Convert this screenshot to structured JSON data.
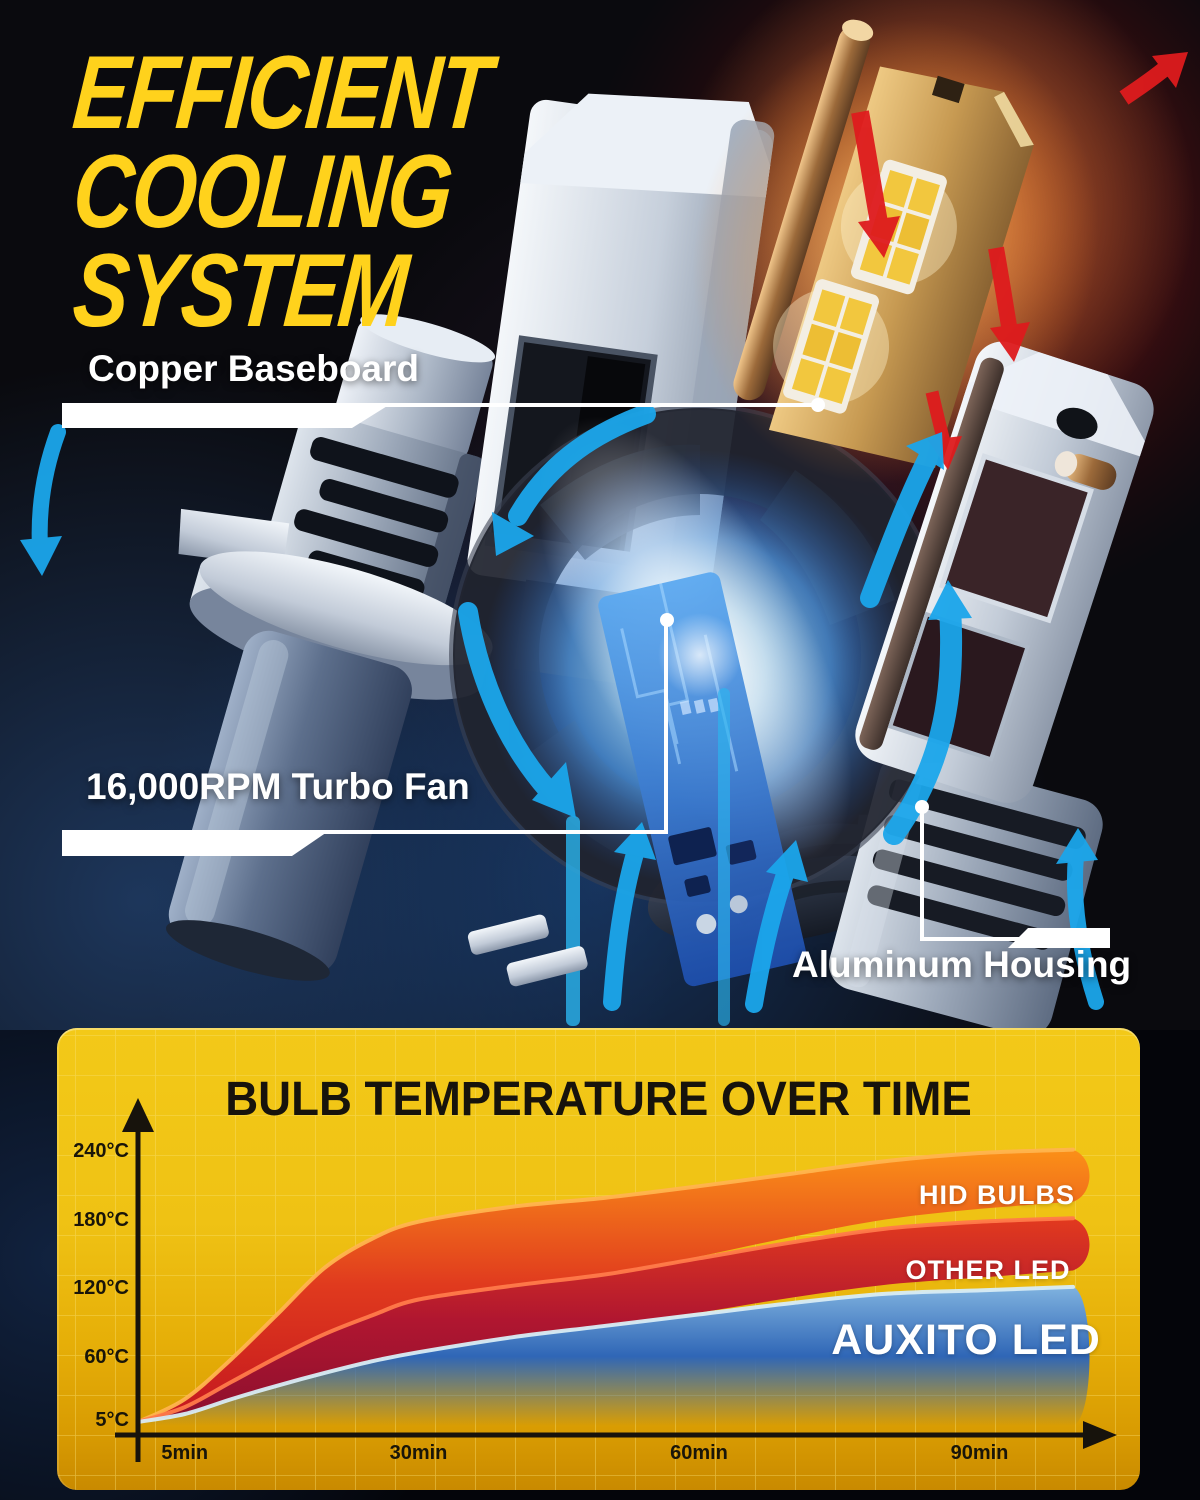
{
  "header": {
    "title_lines": [
      "EFFICIENT",
      "COOLING",
      "SYSTEM"
    ]
  },
  "callouts": {
    "copper": "Copper Baseboard",
    "fan": "16,000RPM Turbo Fan",
    "housing": "Aluminum Housing"
  },
  "colors": {
    "headline_yellow": "#FFD21C",
    "card_yellow_top": "#F3C918",
    "card_yellow_bottom": "#C98A00",
    "grid_line": "#F8E070",
    "axis_black": "#17130C",
    "blue_arrow": "#1BA6EB",
    "red_arrow": "#DE1B1D",
    "fan_glow_blue": "#4E95DD"
  },
  "chart_data": {
    "type": "area",
    "title": "BULB TEMPERATURE OVER TIME",
    "xlabel": "",
    "ylabel": "",
    "x_unit": "min",
    "y_unit": "°C",
    "ylim": [
      0,
      260
    ],
    "grid": true,
    "legend_position": "on-chart-right",
    "x": [
      0,
      5,
      10,
      15,
      20,
      25,
      30,
      40,
      50,
      60,
      70,
      80,
      90
    ],
    "series": [
      {
        "name": "HID BULBS",
        "values": [
          5,
          25,
          60,
          100,
          140,
          165,
          180,
          193,
          201,
          211,
          222,
          233,
          240
        ],
        "color_top": "#FB9018",
        "color_mid": "#E03A1E",
        "color_bottom": "#C3161F",
        "edge": "#FFB44E",
        "fade_bottom": false
      },
      {
        "name": "OTHER LED",
        "values": [
          5,
          18,
          40,
          62,
          82,
          98,
          112,
          124,
          134,
          148,
          162,
          174,
          180
        ],
        "color_top": "#E23A1E",
        "color_mid": "#B01630",
        "color_bottom": "#8C0F2E",
        "edge": "#FF7A4A",
        "fade_bottom": false
      },
      {
        "name": "AUXITO LED",
        "values": [
          5,
          12,
          25,
          37,
          48,
          58,
          66,
          79,
          89,
          99,
          109,
          117,
          120
        ],
        "color_top": "#7FB2DF",
        "color_mid": "#2F66B6",
        "color_bottom": "#2F66B6",
        "edge": "#D8ECF4",
        "fade_bottom": true
      }
    ],
    "y_ticks": [
      {
        "label": "240°C",
        "value": 240
      },
      {
        "label": "180°C",
        "value": 180
      },
      {
        "label": "120°C",
        "value": 120
      },
      {
        "label": "60°C",
        "value": 60
      },
      {
        "label": "5°C",
        "value": 5
      }
    ],
    "x_ticks": [
      {
        "label": "5min",
        "value": 5
      },
      {
        "label": "30min",
        "value": 30
      },
      {
        "label": "60min",
        "value": 60
      },
      {
        "label": "90min",
        "value": 90
      }
    ]
  }
}
